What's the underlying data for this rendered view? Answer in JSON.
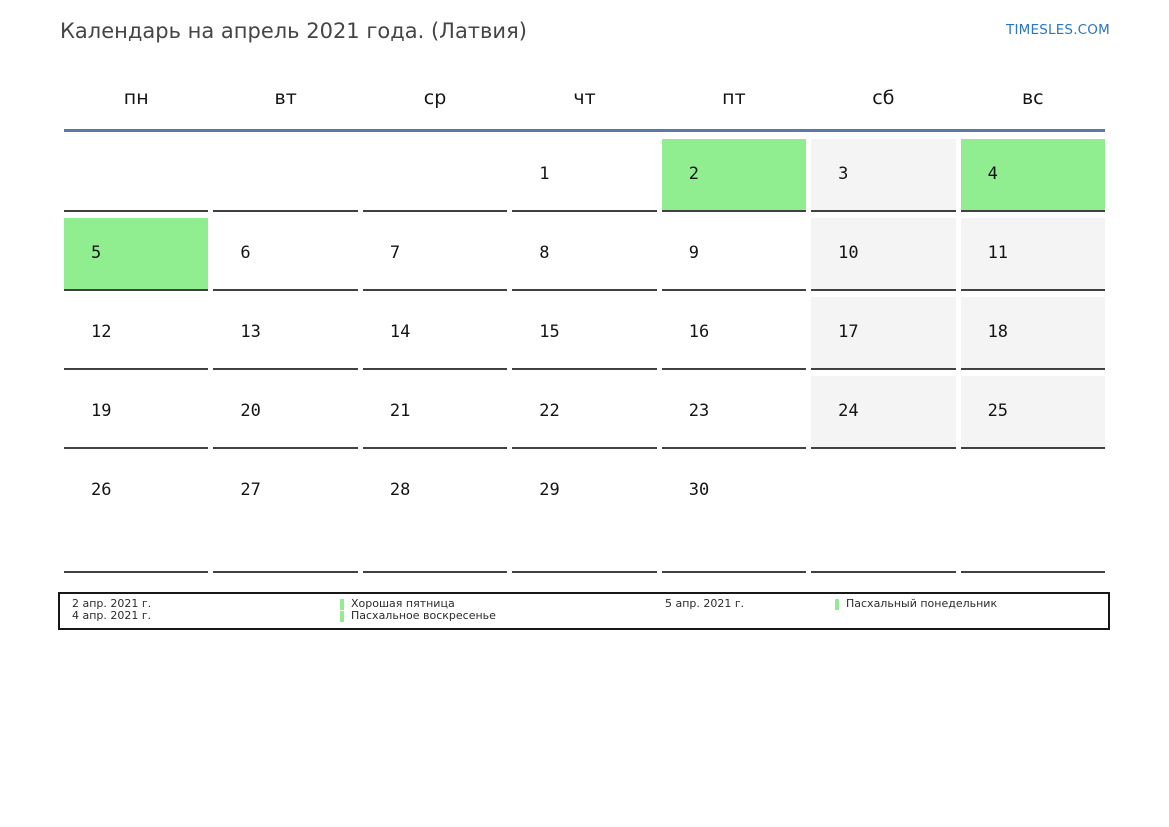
{
  "page": {
    "title": "Календарь на апрель 2021 года. (Латвия)",
    "site_link": "TIMESLES.COM"
  },
  "calendar": {
    "month": "апрель",
    "year": "2021",
    "country": "Латвия",
    "day_headers": [
      "пн",
      "вт",
      "ср",
      "чт",
      "пт",
      "сб",
      "вс"
    ],
    "weeks": [
      [
        {
          "day": "",
          "type": "empty"
        },
        {
          "day": "",
          "type": "empty"
        },
        {
          "day": "",
          "type": "empty"
        },
        {
          "day": "1",
          "type": "workday"
        },
        {
          "day": "2",
          "type": "holiday"
        },
        {
          "day": "3",
          "type": "weekend"
        },
        {
          "day": "4",
          "type": "holiday"
        }
      ],
      [
        {
          "day": "5",
          "type": "holiday"
        },
        {
          "day": "6",
          "type": "workday"
        },
        {
          "day": "7",
          "type": "workday"
        },
        {
          "day": "8",
          "type": "workday"
        },
        {
          "day": "9",
          "type": "workday"
        },
        {
          "day": "10",
          "type": "weekend"
        },
        {
          "day": "11",
          "type": "weekend"
        }
      ],
      [
        {
          "day": "12",
          "type": "workday"
        },
        {
          "day": "13",
          "type": "workday"
        },
        {
          "day": "14",
          "type": "workday"
        },
        {
          "day": "15",
          "type": "workday"
        },
        {
          "day": "16",
          "type": "workday"
        },
        {
          "day": "17",
          "type": "weekend"
        },
        {
          "day": "18",
          "type": "weekend"
        }
      ],
      [
        {
          "day": "19",
          "type": "workday"
        },
        {
          "day": "20",
          "type": "workday"
        },
        {
          "day": "21",
          "type": "workday"
        },
        {
          "day": "22",
          "type": "workday"
        },
        {
          "day": "23",
          "type": "workday"
        },
        {
          "day": "24",
          "type": "weekend"
        },
        {
          "day": "25",
          "type": "weekend"
        }
      ],
      [
        {
          "day": "26",
          "type": "workday"
        },
        {
          "day": "27",
          "type": "workday"
        },
        {
          "day": "28",
          "type": "workday"
        },
        {
          "day": "29",
          "type": "workday"
        },
        {
          "day": "30",
          "type": "workday"
        },
        {
          "day": "",
          "type": "empty"
        },
        {
          "day": "",
          "type": "empty"
        }
      ]
    ]
  },
  "legend": {
    "entries": [
      {
        "date": "2 апр. 2021 г.",
        "name": "Хорошая пятница"
      },
      {
        "date": "4 апр. 2021 г.",
        "name": "Пасхальное воскресенье"
      },
      {
        "date": "5 апр. 2021 г.",
        "name": "Пасхальный понедельник"
      }
    ]
  },
  "colors": {
    "holiday_green": "#90EE90",
    "weekend_gray": "#f4f4f4",
    "divider_blue": "#5a7aa5",
    "link_blue": "#2b76c4",
    "cell_border": "#414141"
  }
}
